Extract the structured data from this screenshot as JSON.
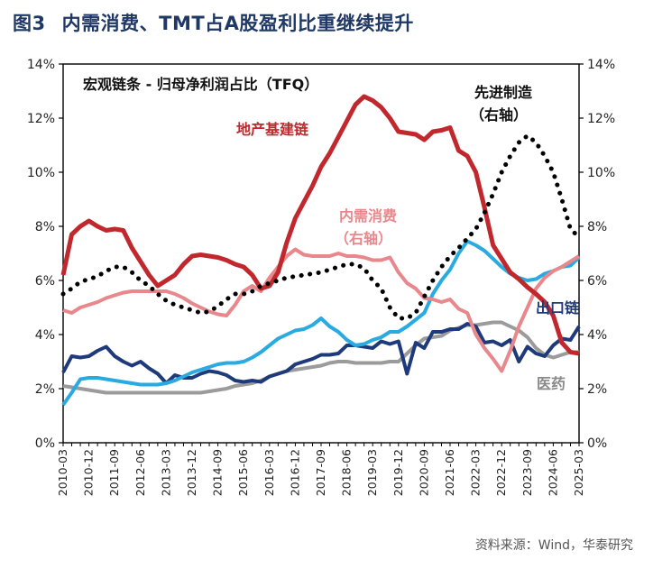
{
  "figure": {
    "number": "图3",
    "title": "内需消费、TMT占A股盈利比重继续提升",
    "source": "资料来源：Wind，华泰研究"
  },
  "chart_data": {
    "type": "line",
    "title": "宏观链条 - 归母净利润占比（TFQ）",
    "xlabel": "",
    "ylabel": "",
    "ylim": [
      0,
      14
    ],
    "y2lim": [
      0,
      14
    ],
    "grid": false,
    "y_tick_labels": [
      "0%",
      "2%",
      "4%",
      "6%",
      "8%",
      "10%",
      "12%",
      "14%"
    ],
    "y2_tick_labels": [
      "0%",
      "2%",
      "4%",
      "6%",
      "8%",
      "10%",
      "12%",
      "14%"
    ],
    "x_tick_labels": [
      "2010-03",
      "2010-12",
      "2011-09",
      "2012-06",
      "2013-03",
      "2013-12",
      "2014-09",
      "2015-06",
      "2016-03",
      "2016-12",
      "2017-09",
      "2018-06",
      "2019-03",
      "2019-12",
      "2020-09",
      "2021-06",
      "2022-03",
      "2022-12",
      "2023-09",
      "2024-06",
      "2025-03"
    ],
    "x": [
      "2010-03",
      "2010-06",
      "2010-09",
      "2010-12",
      "2011-03",
      "2011-06",
      "2011-09",
      "2011-12",
      "2012-03",
      "2012-06",
      "2012-09",
      "2012-12",
      "2013-03",
      "2013-06",
      "2013-09",
      "2013-12",
      "2014-03",
      "2014-06",
      "2014-09",
      "2014-12",
      "2015-03",
      "2015-06",
      "2015-09",
      "2015-12",
      "2016-03",
      "2016-06",
      "2016-09",
      "2016-12",
      "2017-03",
      "2017-06",
      "2017-09",
      "2017-12",
      "2018-03",
      "2018-06",
      "2018-09",
      "2018-12",
      "2019-03",
      "2019-06",
      "2019-09",
      "2019-12",
      "2020-03",
      "2020-06",
      "2020-09",
      "2020-12",
      "2021-03",
      "2021-06",
      "2021-09",
      "2021-12",
      "2022-03",
      "2022-06",
      "2022-09",
      "2022-12",
      "2023-03",
      "2023-06",
      "2023-09",
      "2023-12",
      "2024-03",
      "2024-06",
      "2024-09",
      "2024-12",
      "2025-03"
    ],
    "series": [
      {
        "name": "地产基建链",
        "axis": "left",
        "color": "#c0282d",
        "values": [
          6.2,
          7.7,
          8.0,
          8.2,
          8.0,
          7.85,
          7.9,
          7.85,
          7.2,
          6.7,
          6.2,
          5.8,
          6.0,
          6.2,
          6.6,
          6.9,
          6.95,
          6.9,
          6.85,
          6.75,
          6.6,
          6.5,
          6.2,
          5.7,
          5.8,
          6.3,
          7.4,
          8.3,
          8.9,
          9.5,
          10.2,
          10.7,
          11.3,
          11.9,
          12.5,
          12.8,
          12.65,
          12.4,
          12.0,
          11.5,
          11.45,
          11.4,
          11.2,
          11.5,
          11.55,
          11.65,
          10.8,
          10.6,
          10.0,
          8.7,
          7.3,
          6.8,
          6.3,
          6.05,
          5.75,
          5.5,
          5.2,
          4.7,
          3.7,
          3.35,
          3.3
        ]
      },
      {
        "name": "内需消费",
        "axis": "right",
        "color": "#e8878c",
        "values": [
          4.9,
          4.8,
          5.0,
          5.1,
          5.2,
          5.35,
          5.45,
          5.55,
          5.6,
          5.6,
          5.6,
          5.6,
          5.6,
          5.5,
          5.35,
          5.15,
          5.0,
          4.85,
          4.75,
          4.7,
          5.1,
          5.6,
          5.8,
          5.6,
          6.1,
          6.5,
          6.9,
          7.15,
          6.95,
          6.9,
          6.9,
          6.9,
          7.0,
          6.9,
          6.9,
          6.85,
          6.75,
          6.75,
          6.85,
          6.3,
          5.9,
          5.7,
          5.35,
          5.3,
          5.2,
          5.3,
          4.95,
          4.8,
          4.0,
          3.5,
          3.1,
          2.65,
          3.4,
          4.3,
          5.0,
          5.7,
          6.1,
          6.35,
          6.5,
          6.7,
          6.9
        ]
      },
      {
        "name": "先进制造",
        "axis": "right",
        "color": "#000000",
        "style": "dotted",
        "values": [
          5.5,
          5.7,
          5.95,
          6.05,
          6.15,
          6.35,
          6.5,
          6.5,
          6.3,
          6.0,
          5.8,
          5.5,
          5.25,
          5.1,
          5.0,
          4.9,
          4.8,
          4.85,
          5.05,
          5.3,
          5.5,
          5.5,
          5.6,
          5.8,
          5.9,
          6.0,
          6.1,
          6.15,
          6.2,
          6.25,
          6.3,
          6.4,
          6.5,
          6.6,
          6.6,
          6.45,
          6.0,
          5.7,
          5.0,
          4.6,
          4.6,
          4.8,
          5.4,
          6.0,
          6.5,
          6.9,
          7.2,
          7.55,
          7.9,
          8.5,
          9.2,
          10.0,
          10.6,
          11.1,
          11.35,
          11.1,
          10.6,
          10.0,
          9.0,
          7.9,
          7.6
        ]
      },
      {
        "name": "出口链",
        "axis": "left",
        "color": "#1f3a7a",
        "values": [
          2.6,
          3.2,
          3.15,
          3.2,
          3.4,
          3.55,
          3.2,
          3.0,
          2.85,
          3.0,
          2.75,
          2.55,
          2.2,
          2.5,
          2.4,
          2.4,
          2.55,
          2.65,
          2.6,
          2.5,
          2.3,
          2.25,
          2.3,
          2.25,
          2.45,
          2.55,
          2.65,
          2.9,
          3.0,
          3.1,
          3.25,
          3.25,
          3.3,
          3.6,
          3.6,
          3.55,
          3.5,
          3.75,
          3.65,
          3.75,
          2.55,
          3.7,
          3.5,
          4.1,
          4.1,
          4.2,
          4.2,
          4.4,
          4.3,
          3.7,
          3.75,
          3.6,
          3.8,
          3.0,
          3.55,
          3.3,
          3.2,
          3.6,
          3.85,
          3.8,
          4.3
        ]
      },
      {
        "name": "TMT",
        "axis": "left",
        "color": "#29aae1",
        "values": [
          1.4,
          1.85,
          2.35,
          2.4,
          2.4,
          2.35,
          2.3,
          2.25,
          2.2,
          2.15,
          2.15,
          2.15,
          2.2,
          2.3,
          2.45,
          2.6,
          2.7,
          2.8,
          2.9,
          2.95,
          2.95,
          3.0,
          3.15,
          3.35,
          3.6,
          3.85,
          4.0,
          4.15,
          4.2,
          4.35,
          4.6,
          4.3,
          4.1,
          3.8,
          3.6,
          3.65,
          3.8,
          3.9,
          4.1,
          4.1,
          4.3,
          4.55,
          4.8,
          5.5,
          6.0,
          6.4,
          7.0,
          7.45,
          7.3,
          7.1,
          6.8,
          6.5,
          6.25,
          6.1,
          6.0,
          6.05,
          6.25,
          6.35,
          6.5,
          6.55,
          6.85
        ]
      },
      {
        "name": "医药",
        "axis": "left",
        "color": "#9b9b9b",
        "values": [
          2.1,
          2.05,
          2.0,
          1.95,
          1.9,
          1.85,
          1.85,
          1.85,
          1.85,
          1.85,
          1.85,
          1.85,
          1.85,
          1.85,
          1.85,
          1.85,
          1.85,
          1.9,
          1.95,
          2.0,
          2.1,
          2.15,
          2.2,
          2.3,
          2.45,
          2.55,
          2.65,
          2.7,
          2.75,
          2.8,
          2.85,
          2.95,
          3.0,
          3.0,
          2.95,
          2.95,
          2.95,
          2.95,
          3.0,
          3.0,
          3.3,
          3.6,
          3.85,
          3.9,
          3.95,
          4.15,
          4.25,
          4.35,
          4.35,
          4.4,
          4.45,
          4.45,
          4.3,
          4.15,
          3.9,
          3.5,
          3.25,
          3.15,
          3.25,
          3.35,
          3.35
        ]
      }
    ],
    "annotations": [
      {
        "id": "re",
        "text": "地产基建链"
      },
      {
        "id": "consumer_line1",
        "text": "内需消费"
      },
      {
        "id": "consumer_line2",
        "text": "（右轴）"
      },
      {
        "id": "adv_line1",
        "text": "先进制造"
      },
      {
        "id": "adv_line2",
        "text": "（右轴）"
      },
      {
        "id": "export",
        "text": "出口链"
      },
      {
        "id": "pharma",
        "text": "医药"
      }
    ]
  }
}
